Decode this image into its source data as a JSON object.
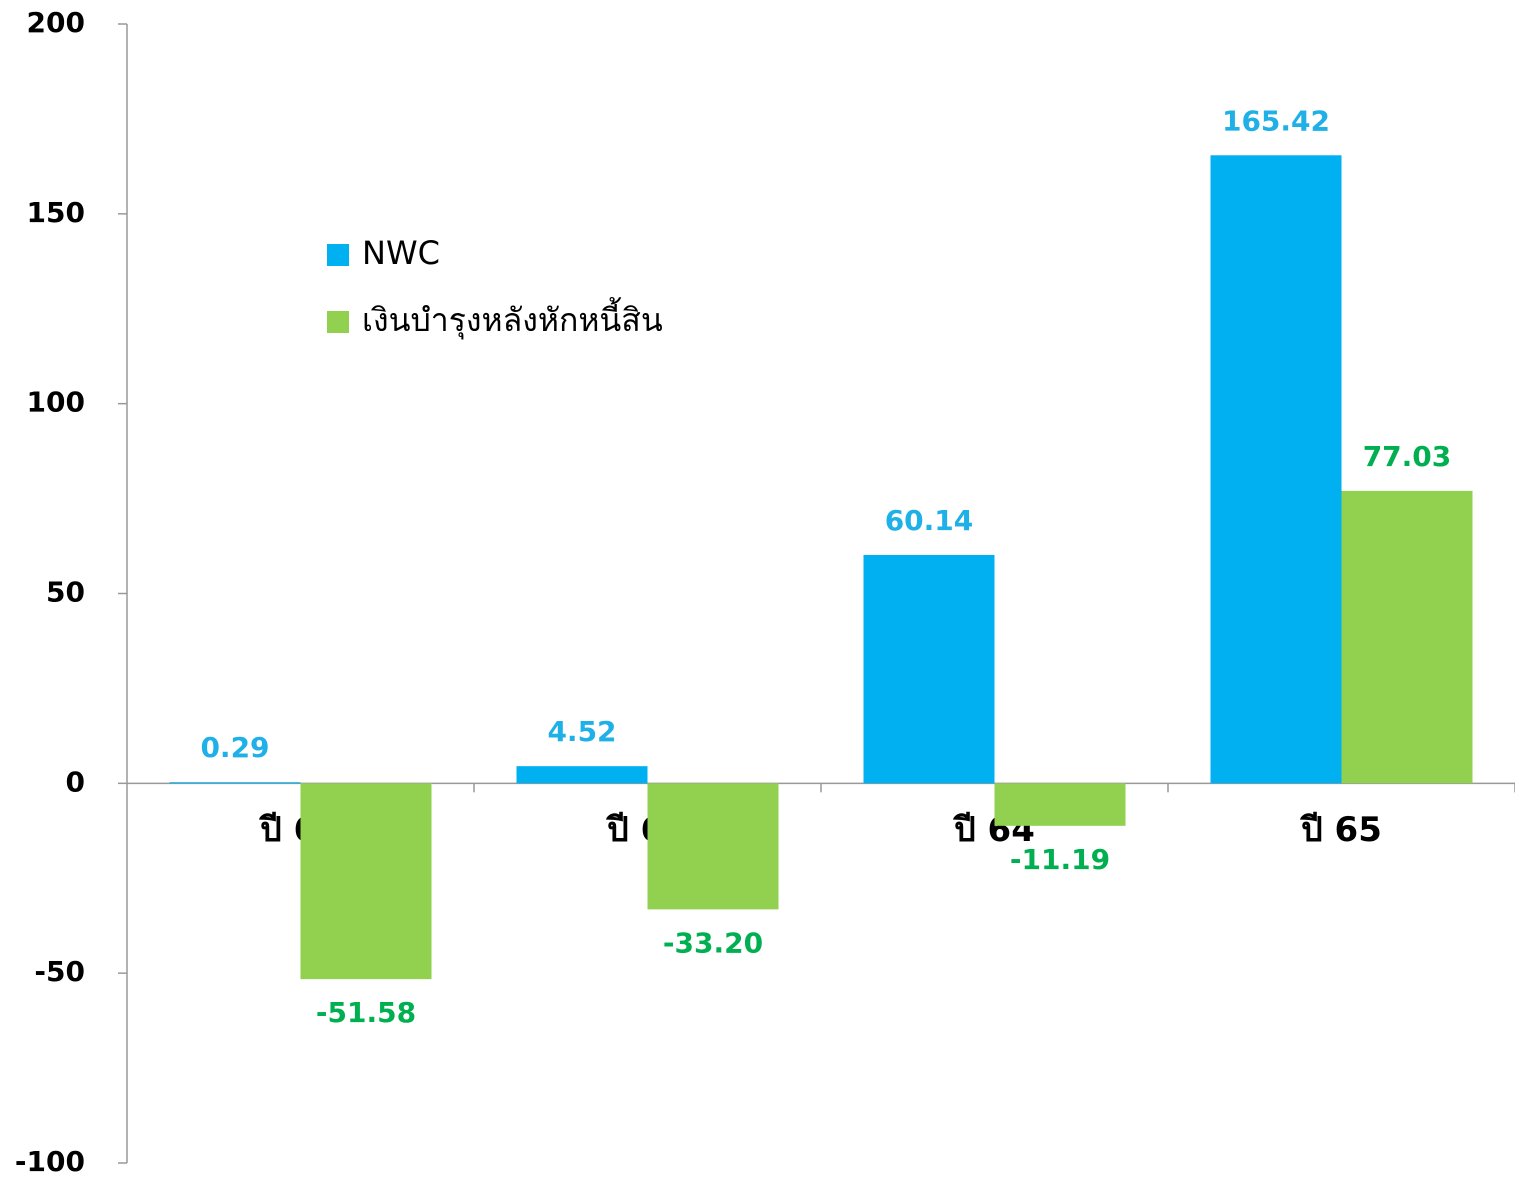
{
  "chart_data": {
    "type": "bar",
    "categories": [
      "ปี 62",
      "ปี 63",
      "ปี 64",
      "ปี 65"
    ],
    "series": [
      {
        "name": "NWC",
        "color": "#00b0f0",
        "label_color": "#1fb0e8",
        "values": [
          0.29,
          4.52,
          60.14,
          165.42
        ]
      },
      {
        "name": "เงินบำรุงหลังหักหนี้สิน",
        "color": "#92d050",
        "label_color": "#00b050",
        "values": [
          -51.58,
          -33.2,
          -11.19,
          77.03
        ],
        "value_labels": [
          "-51.58",
          "-33.20",
          "-11.19",
          "77.03"
        ]
      }
    ],
    "ylim": [
      -100,
      200
    ],
    "yticks": [
      -100,
      -50,
      0,
      50,
      100,
      150,
      200
    ],
    "grid": false,
    "legend": "upper left"
  }
}
